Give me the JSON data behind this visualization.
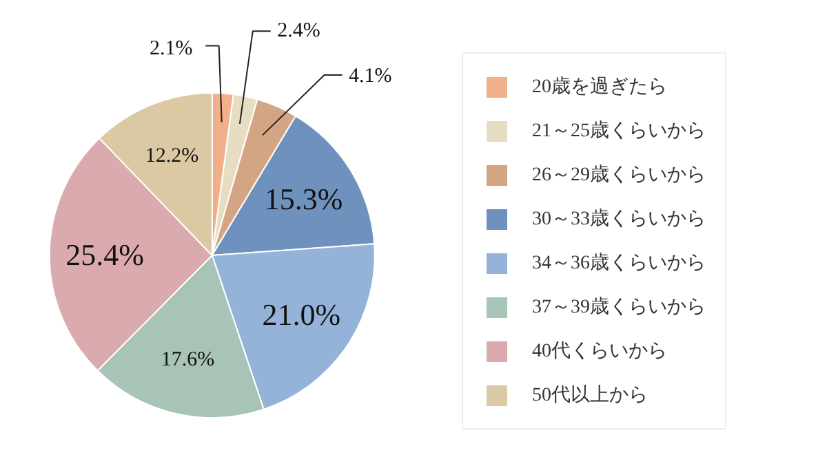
{
  "chart_data": {
    "type": "pie",
    "categories": [
      "20歳を過ぎたら",
      "21～25歳くらいから",
      "26～29歳くらいから",
      "30～33歳くらいから",
      "34～36歳くらいから",
      "37～39歳くらいから",
      "40代くらいから",
      "50代以上から"
    ],
    "values": [
      2.1,
      2.4,
      4.1,
      15.3,
      21.0,
      17.6,
      25.4,
      12.2
    ],
    "colors": [
      "#f2b08a",
      "#e6ddc2",
      "#d3a583",
      "#6f91bd",
      "#95b3d8",
      "#a8c4b6",
      "#daaaae",
      "#dac9a3"
    ],
    "value_labels": [
      "2.1%",
      "2.4%",
      "4.1%",
      "15.3%",
      "21.0%",
      "17.6%",
      "25.4%",
      "12.2%"
    ],
    "legend": "right"
  }
}
